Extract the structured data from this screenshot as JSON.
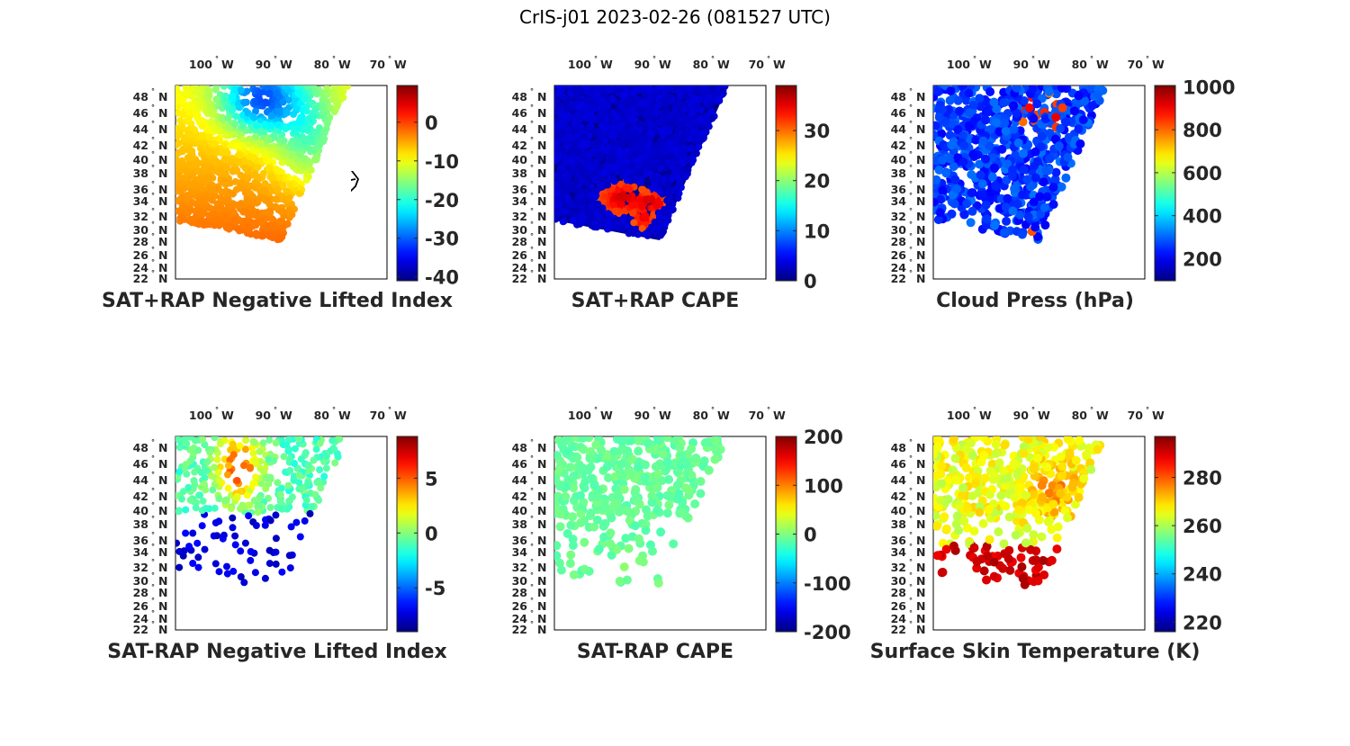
{
  "figure_title": "CrIS-j01 2023-02-26 (081527 UTC)",
  "axes": {
    "lon_labels": [
      "100",
      "90",
      "80",
      "70"
    ],
    "lon_hemisphere": "W",
    "lat_labels": [
      "48",
      "46",
      "44",
      "42",
      "40",
      "38",
      "36",
      "34",
      "32",
      "30",
      "28",
      "26",
      "24",
      "22"
    ],
    "lat_hemisphere": "N",
    "degree_symbol": "°"
  },
  "colormap": "jet",
  "panels": [
    {
      "title": "SAT+RAP Negative Lifted Index",
      "colorbar": {
        "range": [
          -41,
          9.5
        ],
        "ticks": [
          0,
          -10,
          -20,
          -30,
          -40
        ],
        "tick_labels": [
          "0",
          "-10",
          "-20",
          "-30",
          "-40"
        ]
      }
    },
    {
      "title": "SAT+RAP CAPE",
      "colorbar": {
        "range": [
          0,
          39
        ],
        "ticks": [
          30,
          20,
          10,
          0
        ],
        "tick_labels": [
          "30",
          "20",
          "10",
          "0"
        ]
      }
    },
    {
      "title": "Cloud Press (hPa)",
      "colorbar": {
        "range": [
          97,
          1006
        ],
        "ticks": [
          1000,
          800,
          600,
          400,
          200
        ],
        "tick_labels": [
          "1000",
          "800",
          "600",
          "400",
          "200"
        ]
      }
    },
    {
      "title": "SAT-RAP Negative Lifted Index",
      "colorbar": {
        "range": [
          -9,
          8.8
        ],
        "ticks": [
          5,
          0,
          -5
        ],
        "tick_labels": [
          "5",
          "0",
          "-5"
        ]
      }
    },
    {
      "title": "SAT-RAP CAPE",
      "colorbar": {
        "range": [
          -200,
          200
        ],
        "ticks": [
          200,
          100,
          0,
          -100,
          -200
        ],
        "tick_labels": [
          "200",
          "100",
          "0",
          "-100",
          "-200"
        ]
      }
    },
    {
      "title": "Surface Skin Temperature (K)",
      "colorbar": {
        "range": [
          216,
          297
        ],
        "ticks": [
          280,
          260,
          240,
          220
        ],
        "tick_labels": [
          "280",
          "260",
          "240",
          "220"
        ]
      }
    }
  ]
}
